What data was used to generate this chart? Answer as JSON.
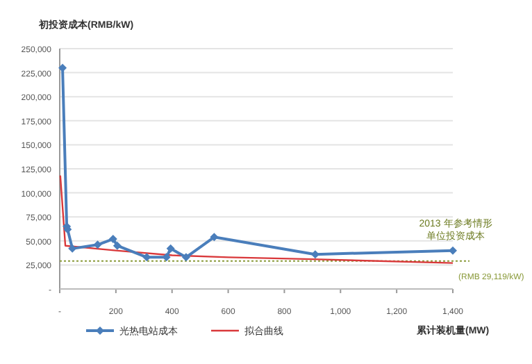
{
  "chart_data": {
    "type": "line",
    "ylabel": "初投资成本(RMB/kW)",
    "xlabel": "累计装机量(MW)",
    "xlim": [
      0,
      1400
    ],
    "xticks": [
      {
        "value": 0,
        "label": "-"
      },
      200,
      400,
      {
        "value": 600,
        "label": "600"
      },
      {
        "value": 800,
        "label": "800"
      },
      {
        "value": 1000,
        "label": "1,000"
      },
      {
        "value": 1200,
        "label": "1,200"
      },
      {
        "value": 1400,
        "label": "1,400"
      }
    ],
    "ylim": [
      0,
      250000
    ],
    "yticks": [
      {
        "value": 0,
        "label": "-"
      },
      {
        "value": 25000,
        "label": "25,000"
      },
      {
        "value": 50000,
        "label": "50,000"
      },
      {
        "value": 75000,
        "label": "75,000"
      },
      {
        "value": 100000,
        "label": "100,000"
      },
      {
        "value": 125000,
        "label": "125,000"
      },
      {
        "value": 150000,
        "label": "150,000"
      },
      {
        "value": 175000,
        "label": "175,000"
      },
      {
        "value": 200000,
        "label": "200,000"
      },
      {
        "value": 225000,
        "label": "225,000"
      },
      {
        "value": 250000,
        "label": "250,000"
      }
    ],
    "grid": "y",
    "legend": "bottom",
    "series": [
      {
        "name": "光热电站成本",
        "color": "#4a7ebb",
        "marker": "diamond",
        "x": [
          10,
          25,
          28,
          45,
          135,
          190,
          205,
          310,
          380,
          395,
          450,
          550,
          910,
          1400
        ],
        "values": [
          230000,
          65000,
          62000,
          42000,
          46000,
          52000,
          45000,
          33000,
          33000,
          42000,
          33000,
          54000,
          36000,
          40000
        ]
      },
      {
        "name": "拟合曲线",
        "color": "#d9383a",
        "marker": "none",
        "x": [
          2,
          20,
          200,
          400,
          600,
          900,
          1400
        ],
        "values": [
          118000,
          45000,
          40000,
          35000,
          33000,
          31000,
          27000
        ]
      }
    ],
    "ref_lines": [
      {
        "axis": "y",
        "value": 29119,
        "label": "(RMB 29,119/kW)",
        "color": "#8a9a3a",
        "line_style": "dotted"
      }
    ],
    "annotations": [
      "2013 年参考情形",
      "单位投资成本"
    ]
  }
}
